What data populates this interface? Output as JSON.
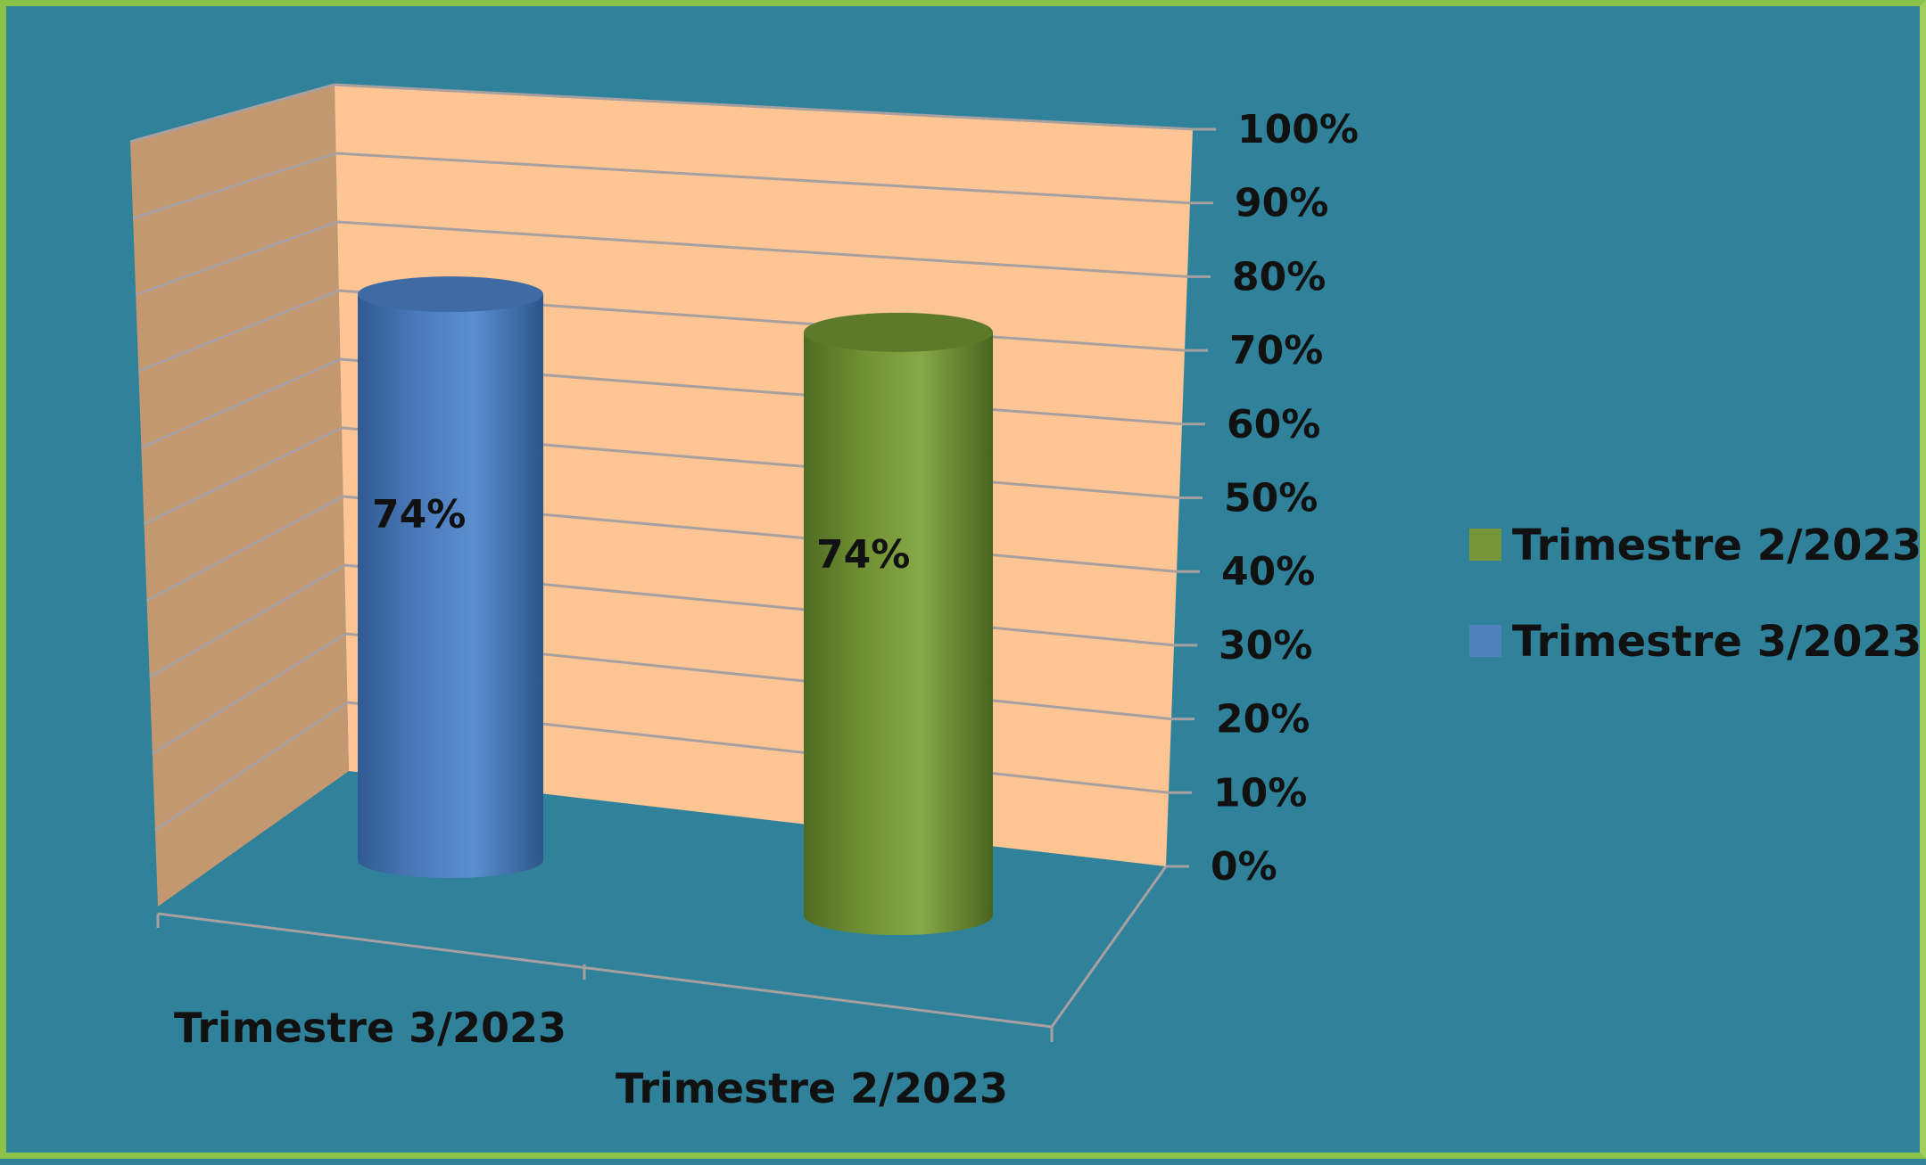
{
  "chart_data": {
    "type": "bar",
    "style": "3d-cylinder",
    "categories": [
      "Trimestre 3/2023",
      "Trimestre 2/2023"
    ],
    "series": [
      {
        "name": "Trimestre 2/2023",
        "category": "Trimestre 2/2023",
        "value": 74,
        "label": "74%",
        "color": "#77963a"
      },
      {
        "name": "Trimestre 3/2023",
        "category": "Trimestre 3/2023",
        "value": 74,
        "label": "74%",
        "color": "#4f81bd"
      }
    ],
    "yticks": [
      "0%",
      "10%",
      "20%",
      "30%",
      "40%",
      "50%",
      "60%",
      "70%",
      "80%",
      "90%",
      "100%"
    ],
    "ylim": [
      0,
      100
    ],
    "grid": true,
    "legend": "right",
    "colors": {
      "background": "#2f8299",
      "back_wall": "#fdc593",
      "side_wall": "#c39870",
      "grid": "#a8a0a0",
      "text": "#111111",
      "border": "#8bc34a"
    }
  }
}
